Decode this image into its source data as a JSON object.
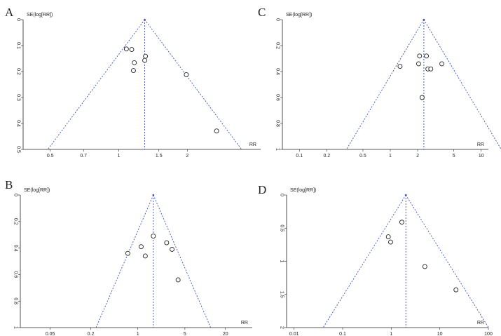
{
  "chart_data": [
    {
      "panel": "A",
      "type": "scatter",
      "title": "",
      "ylabel": "SE(log[RR])",
      "xlabel": "RR",
      "x_scale": "log",
      "y_reversed": true,
      "xlim": [
        0.38,
        4.2
      ],
      "ylim": [
        0,
        0.5
      ],
      "x_ticks": [
        0.5,
        0.7,
        1,
        1.5,
        2
      ],
      "x_tick_labels": [
        "0.5",
        "0.7",
        "1",
        "1.5",
        "2"
      ],
      "y_ticks": [
        0,
        0.1,
        0.2,
        0.3,
        0.4,
        0.5
      ],
      "y_tick_labels": [
        "0",
        "0.1",
        "0.2",
        "0.3",
        "0.4",
        "0.5"
      ],
      "pooled_rr": 1.3,
      "funnel_se_max": 0.5,
      "points": [
        {
          "x": 1.08,
          "y": 0.113
        },
        {
          "x": 1.14,
          "y": 0.115
        },
        {
          "x": 1.31,
          "y": 0.141
        },
        {
          "x": 1.3,
          "y": 0.157
        },
        {
          "x": 1.17,
          "y": 0.166
        },
        {
          "x": 1.16,
          "y": 0.196
        },
        {
          "x": 1.98,
          "y": 0.212
        },
        {
          "x": 2.69,
          "y": 0.429
        }
      ]
    },
    {
      "panel": "C",
      "type": "scatter",
      "title": "",
      "ylabel": "SE(log[RR])",
      "xlabel": "RR",
      "x_scale": "log",
      "y_reversed": true,
      "xlim": [
        0.065,
        12
      ],
      "ylim": [
        0,
        1
      ],
      "x_ticks": [
        0.1,
        0.2,
        0.5,
        1,
        2,
        5,
        10
      ],
      "x_tick_labels": [
        "0.1",
        "0.2",
        "0.5",
        "1",
        "2",
        "5",
        "10"
      ],
      "y_ticks": [
        0,
        0.2,
        0.4,
        0.6,
        0.8,
        1
      ],
      "y_tick_labels": [
        "0",
        "0.2",
        "0.4",
        "0.6",
        "0.8",
        "1"
      ],
      "pooled_rr": 2.34,
      "funnel_se_max": 1,
      "points": [
        {
          "x": 2.1,
          "y": 0.28
        },
        {
          "x": 2.5,
          "y": 0.28
        },
        {
          "x": 2.05,
          "y": 0.34
        },
        {
          "x": 1.28,
          "y": 0.36
        },
        {
          "x": 2.59,
          "y": 0.38
        },
        {
          "x": 2.79,
          "y": 0.38
        },
        {
          "x": 3.69,
          "y": 0.34
        },
        {
          "x": 2.24,
          "y": 0.6
        }
      ]
    },
    {
      "panel": "B",
      "type": "scatter",
      "title": "",
      "ylabel": "SE(log[RR])",
      "xlabel": "RR",
      "x_scale": "log",
      "y_reversed": true,
      "xlim": [
        0.018,
        50
      ],
      "ylim": [
        0,
        1
      ],
      "x_ticks": [
        0.05,
        0.2,
        1,
        5,
        20
      ],
      "x_tick_labels": [
        "0.05",
        "0.2",
        "1",
        "5",
        "20"
      ],
      "y_ticks": [
        0,
        0.2,
        0.4,
        0.6,
        0.8,
        1
      ],
      "y_tick_labels": [
        "0",
        "0.2",
        "0.4",
        "0.6",
        "0.8",
        "1"
      ],
      "pooled_rr": 1.7,
      "funnel_se_max": 1,
      "points": [
        {
          "x": 1.7,
          "y": 0.31
        },
        {
          "x": 2.68,
          "y": 0.36
        },
        {
          "x": 1.12,
          "y": 0.39
        },
        {
          "x": 3.22,
          "y": 0.41
        },
        {
          "x": 0.71,
          "y": 0.44
        },
        {
          "x": 1.29,
          "y": 0.46
        },
        {
          "x": 3.96,
          "y": 0.64
        }
      ]
    },
    {
      "panel": "D",
      "type": "scatter",
      "title": "",
      "ylabel": "SE(log[RR])",
      "xlabel": "RR",
      "x_scale": "log",
      "y_reversed": true,
      "xlim": [
        0.007,
        100
      ],
      "ylim": [
        0,
        2
      ],
      "x_ticks": [
        0.01,
        0.1,
        1,
        10,
        100
      ],
      "x_tick_labels": [
        "0.01",
        "0.1",
        "1",
        "10",
        "100"
      ],
      "y_ticks": [
        0,
        0.5,
        1,
        1.5,
        2
      ],
      "y_tick_labels": [
        "0",
        "0.5",
        "1",
        "1.5",
        "2"
      ],
      "pooled_rr": 2.0,
      "funnel_se_max": 2,
      "points": [
        {
          "x": 1.65,
          "y": 0.41
        },
        {
          "x": 0.87,
          "y": 0.63
        },
        {
          "x": 0.97,
          "y": 0.71
        },
        {
          "x": 4.92,
          "y": 1.08
        },
        {
          "x": 21.5,
          "y": 1.43
        }
      ]
    }
  ]
}
